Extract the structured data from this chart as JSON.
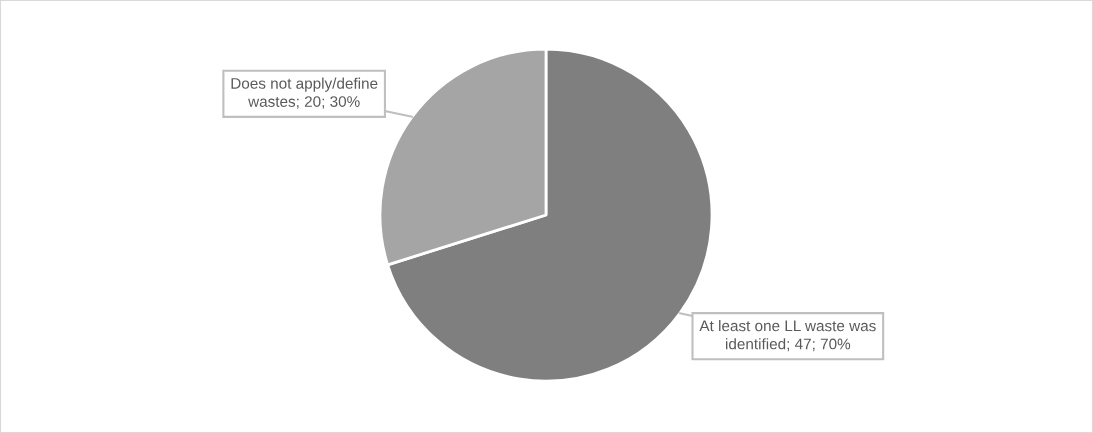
{
  "chart_data": {
    "type": "pie",
    "categories": [
      "At least one LL waste was identified",
      "Does not apply/define wastes"
    ],
    "values": [
      47,
      20
    ],
    "colors": [
      "#7f7f7f",
      "#a5a5a5"
    ],
    "value_labels": [
      "47; 70%",
      "20; 30%"
    ]
  }
}
